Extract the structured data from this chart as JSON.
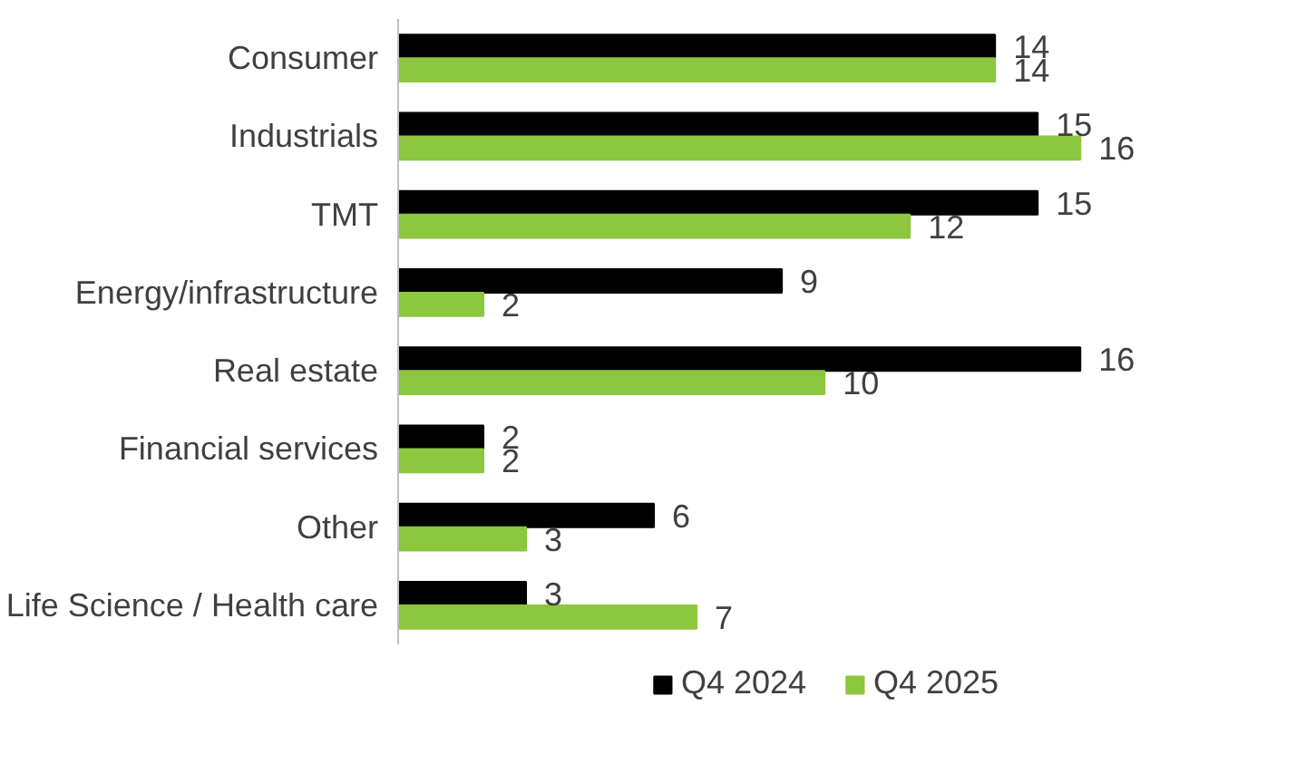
{
  "chart_data": {
    "type": "bar",
    "orientation": "horizontal",
    "categories": [
      "Consumer",
      "Industrials",
      "TMT",
      "Energy/infrastructure",
      "Real estate",
      "Financial services",
      "Other",
      "Life Science / Health care"
    ],
    "series": [
      {
        "name": "Q4 2024",
        "color": "#000000",
        "values": [
          14,
          15,
          15,
          9,
          16,
          2,
          6,
          3
        ]
      },
      {
        "name": "Q4 2025",
        "color": "#8dc63f",
        "values": [
          14,
          16,
          12,
          2,
          10,
          2,
          3,
          7
        ]
      }
    ],
    "data_labels": true,
    "legend": "bottom",
    "grid": false
  }
}
